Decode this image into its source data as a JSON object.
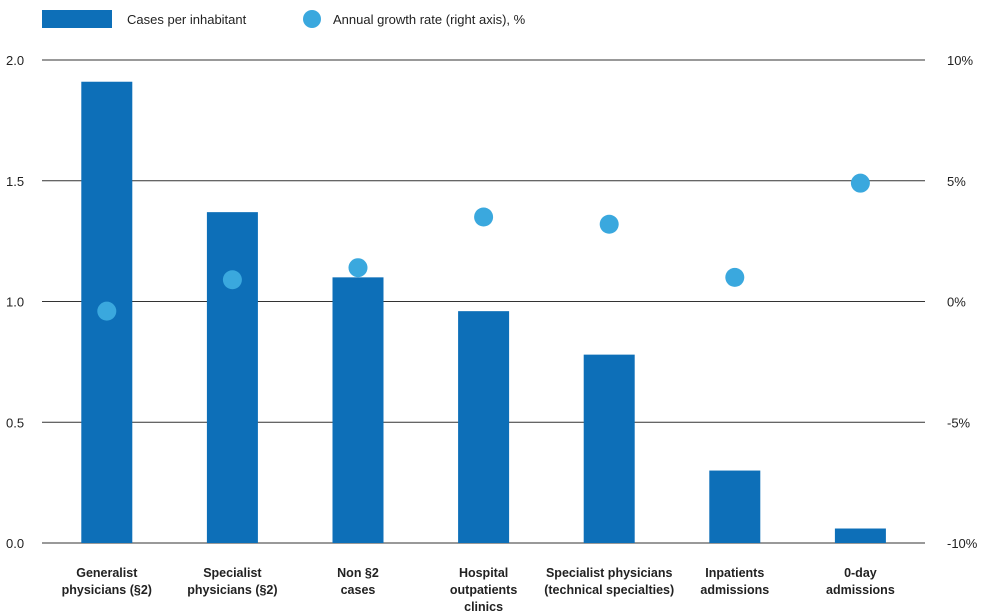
{
  "legend": {
    "bar_label": "Cases per inhabitant",
    "dot_label": "Annual growth rate (right axis), %"
  },
  "colors": {
    "bar": "#0d6fb8",
    "dot": "#3aa8de",
    "grid": "#333333",
    "text": "#222222"
  },
  "chart_data": {
    "type": "bar",
    "categories": [
      [
        "Generalist",
        "physicians (§2)"
      ],
      [
        "Specialist",
        "physicians (§2)"
      ],
      [
        "Non §2",
        "cases"
      ],
      [
        "Hospital",
        "outpatients",
        "clinics"
      ],
      [
        "Specialist physicians",
        "(technical specialties)"
      ],
      [
        "Inpatients",
        "admissions"
      ],
      [
        "0-day",
        "admissions"
      ]
    ],
    "series": [
      {
        "name": "Cases per inhabitant",
        "type": "bar",
        "axis": "left",
        "values": [
          1.91,
          1.37,
          1.1,
          0.96,
          0.78,
          0.3,
          0.06
        ]
      },
      {
        "name": "Annual growth rate (right axis), %",
        "type": "scatter",
        "axis": "right",
        "values": [
          -0.4,
          0.9,
          1.4,
          3.5,
          3.2,
          1.0,
          4.9
        ]
      }
    ],
    "y_left": {
      "ylim": [
        0,
        2.0
      ],
      "ticks": [
        "0.0",
        "0.5",
        "1.0",
        "1.5",
        "2.0"
      ],
      "tick_values": [
        0,
        0.5,
        1.0,
        1.5,
        2.0
      ]
    },
    "y_right": {
      "ylim": [
        -10,
        10
      ],
      "ticks": [
        "-10%",
        "-5%",
        "0%",
        "5%",
        "10%"
      ],
      "tick_values": [
        -10,
        -5,
        0,
        5,
        10
      ]
    },
    "grid": true,
    "legend_position": "top-left"
  }
}
